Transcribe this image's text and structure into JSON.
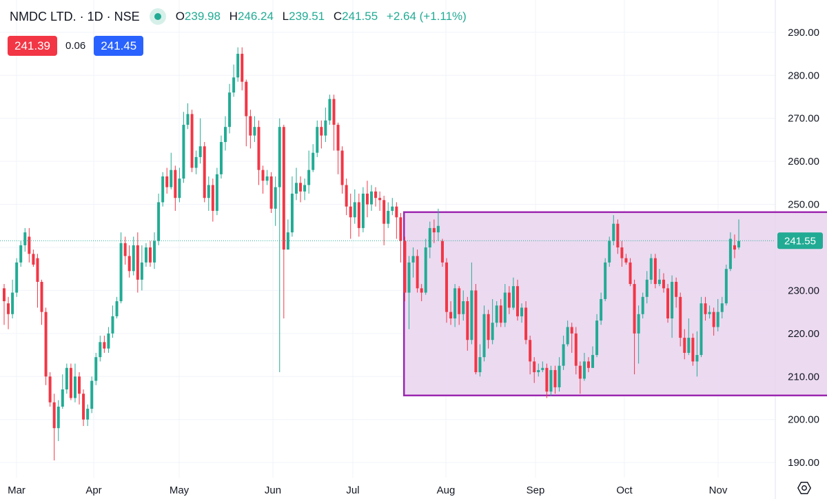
{
  "header": {
    "symbol": "NMDC LTD. · 1D · NSE",
    "open_label": "O",
    "open": "239.98",
    "high_label": "H",
    "high": "246.24",
    "low_label": "L",
    "low": "239.51",
    "close_label": "C",
    "close": "241.55",
    "change": "+2.64 (+1.11%)"
  },
  "quotes": {
    "sell": "241.39",
    "spread": "0.06",
    "buy": "241.45"
  },
  "colors": {
    "up": "#22ab94",
    "down": "#f23645",
    "box_border": "#9c27b0",
    "box_fill": "#e9d4ef",
    "grid": "#f0f3fa"
  },
  "icons": {
    "settings": "settings-icon",
    "live-dot": "live-dot-icon"
  },
  "chart_data": {
    "type": "candlestick",
    "x_tick_labels": [
      "Mar",
      "Apr",
      "May",
      "Jun",
      "Jul",
      "Aug",
      "Sep",
      "Oct",
      "Nov"
    ],
    "y_tick_labels": [
      "290.00",
      "280.00",
      "270.00",
      "260.00",
      "250.00",
      "240.00",
      "230.00",
      "220.00",
      "210.00",
      "200.00",
      "190.00"
    ],
    "y_ticks": [
      290,
      280,
      270,
      260,
      250,
      240,
      230,
      220,
      210,
      200,
      190
    ],
    "y_range": [
      186.5,
      297.5
    ],
    "last_price": 241.55,
    "last_price_label": "241.55",
    "range_box": {
      "start_month_index": 4.55,
      "end_month_index": 9.55,
      "top": 248.2,
      "bottom": 205.6
    },
    "candles": [
      [
        230.5,
        227.5,
        231.5,
        222.0
      ],
      [
        227.0,
        224.5,
        228.5,
        221.0
      ],
      [
        224.5,
        229.5,
        232.5,
        223.5
      ],
      [
        229.5,
        236.5,
        237.5,
        228.5
      ],
      [
        236.5,
        240.5,
        241.5,
        235.5
      ],
      [
        240.5,
        243.5,
        244.5,
        239.0
      ],
      [
        242.5,
        238.5,
        244.5,
        236.5
      ],
      [
        238.5,
        236.0,
        239.5,
        235.5
      ],
      [
        237.5,
        232.0,
        238.5,
        226.0
      ],
      [
        232.0,
        225.0,
        232.5,
        222.0
      ],
      [
        225.0,
        210.0,
        226.0,
        208.0
      ],
      [
        210.0,
        204.0,
        211.0,
        203.0
      ],
      [
        204.0,
        198.0,
        206.0,
        190.5
      ],
      [
        198.0,
        203.0,
        204.5,
        195.0
      ],
      [
        203.0,
        207.0,
        210.5,
        202.5
      ],
      [
        207.0,
        212.0,
        213.0,
        206.0
      ],
      [
        212.0,
        205.0,
        213.0,
        204.5
      ],
      [
        205.0,
        210.0,
        213.0,
        204.0
      ],
      [
        210.0,
        206.0,
        211.0,
        203.5
      ],
      [
        206.0,
        200.0,
        207.0,
        198.5
      ],
      [
        200.0,
        202.5,
        203.5,
        198.5
      ],
      [
        202.5,
        209.0,
        210.0,
        201.5
      ],
      [
        209.0,
        214.5,
        215.5,
        208.0
      ],
      [
        214.5,
        218.0,
        219.5,
        213.5
      ],
      [
        218.0,
        216.5,
        219.5,
        215.5
      ],
      [
        216.5,
        220.0,
        221.5,
        215.5
      ],
      [
        220.0,
        224.0,
        226.5,
        219.0
      ],
      [
        224.0,
        227.5,
        228.5,
        223.5
      ],
      [
        227.5,
        241.0,
        243.5,
        227.0
      ],
      [
        241.0,
        238.0,
        242.5,
        236.0
      ],
      [
        238.0,
        234.5,
        240.5,
        233.0
      ],
      [
        234.5,
        240.5,
        242.5,
        233.5
      ],
      [
        240.5,
        232.5,
        243.5,
        229.5
      ],
      [
        232.5,
        236.5,
        240.5,
        230.0
      ],
      [
        236.5,
        240.0,
        241.0,
        235.5
      ],
      [
        240.0,
        236.5,
        241.5,
        235.5
      ],
      [
        236.5,
        241.5,
        243.5,
        235.0
      ],
      [
        241.5,
        250.5,
        252.5,
        240.5
      ],
      [
        250.5,
        256.5,
        257.5,
        249.5
      ],
      [
        256.5,
        254.0,
        258.5,
        252.5
      ],
      [
        254.0,
        258.0,
        262.0,
        253.5
      ],
      [
        258.0,
        251.5,
        259.0,
        248.5
      ],
      [
        251.5,
        256.0,
        258.5,
        250.5
      ],
      [
        256.0,
        268.5,
        271.5,
        255.0
      ],
      [
        268.5,
        271.0,
        273.5,
        267.5
      ],
      [
        271.0,
        258.5,
        272.0,
        257.5
      ],
      [
        258.5,
        261.0,
        262.5,
        257.0
      ],
      [
        261.0,
        263.5,
        270.0,
        259.5
      ],
      [
        263.5,
        251.5,
        264.5,
        250.5
      ],
      [
        251.5,
        254.5,
        256.5,
        248.5
      ],
      [
        254.5,
        248.5,
        256.0,
        246.0
      ],
      [
        248.5,
        257.0,
        258.5,
        247.5
      ],
      [
        257.0,
        264.5,
        266.0,
        256.0
      ],
      [
        264.5,
        268.0,
        270.5,
        262.5
      ],
      [
        268.0,
        276.0,
        278.0,
        266.5
      ],
      [
        276.0,
        279.5,
        282.5,
        275.0
      ],
      [
        279.5,
        285.0,
        286.5,
        278.5
      ],
      [
        285.0,
        278.5,
        286.5,
        276.5
      ],
      [
        278.5,
        270.5,
        279.0,
        263.5
      ],
      [
        270.5,
        266.0,
        272.0,
        263.0
      ],
      [
        266.0,
        268.0,
        270.5,
        264.5
      ],
      [
        268.0,
        258.0,
        269.5,
        254.5
      ],
      [
        258.0,
        255.5,
        259.0,
        252.5
      ],
      [
        255.5,
        256.5,
        258.0,
        254.5
      ],
      [
        256.5,
        249.0,
        257.5,
        248.0
      ],
      [
        249.0,
        254.0,
        256.5,
        245.0
      ],
      [
        254.0,
        268.0,
        270.0,
        211.0
      ],
      [
        268.0,
        239.5,
        268.5,
        223.5
      ],
      [
        239.5,
        243.5,
        246.5,
        242.5
      ],
      [
        243.5,
        252.5,
        256.5,
        242.5
      ],
      [
        252.5,
        255.0,
        258.5,
        251.0
      ],
      [
        255.0,
        253.0,
        256.5,
        250.5
      ],
      [
        253.0,
        254.5,
        256.0,
        251.0
      ],
      [
        254.5,
        258.0,
        262.5,
        252.5
      ],
      [
        258.0,
        262.0,
        264.0,
        257.5
      ],
      [
        262.0,
        268.0,
        269.5,
        261.0
      ],
      [
        268.0,
        266.0,
        269.5,
        263.0
      ],
      [
        266.0,
        269.5,
        272.5,
        264.5
      ],
      [
        269.5,
        274.5,
        275.5,
        268.5
      ],
      [
        274.5,
        268.5,
        275.5,
        262.5
      ],
      [
        268.5,
        262.5,
        269.0,
        257.0
      ],
      [
        262.5,
        254.5,
        263.5,
        252.5
      ],
      [
        254.5,
        249.5,
        256.0,
        247.5
      ],
      [
        249.5,
        247.0,
        252.5,
        242.0
      ],
      [
        247.0,
        250.5,
        253.5,
        245.5
      ],
      [
        250.5,
        244.5,
        252.5,
        242.5
      ],
      [
        244.5,
        252.5,
        254.0,
        243.5
      ],
      [
        252.5,
        250.0,
        255.5,
        247.0
      ],
      [
        250.0,
        253.0,
        254.5,
        248.5
      ],
      [
        253.0,
        251.5,
        254.0,
        249.5
      ],
      [
        251.5,
        251.0,
        253.0,
        248.5
      ],
      [
        251.0,
        245.5,
        252.0,
        240.5
      ],
      [
        245.5,
        248.5,
        250.5,
        244.5
      ],
      [
        248.5,
        249.5,
        251.5,
        247.5
      ],
      [
        249.5,
        247.0,
        250.5,
        242.0
      ],
      [
        247.0,
        241.5,
        248.0,
        236.5
      ],
      [
        241.5,
        229.5,
        242.5,
        227.5
      ],
      [
        229.5,
        236.5,
        238.0,
        221.0
      ],
      [
        236.5,
        238.0,
        240.0,
        233.0
      ],
      [
        238.0,
        230.5,
        239.5,
        229.5
      ],
      [
        230.5,
        229.5,
        231.5,
        227.5
      ],
      [
        229.5,
        240.0,
        242.0,
        229.0
      ],
      [
        240.0,
        244.5,
        246.0,
        237.5
      ],
      [
        244.5,
        243.5,
        246.5,
        241.0
      ],
      [
        243.5,
        245.0,
        249.0,
        241.5
      ],
      [
        241.5,
        236.5,
        242.0,
        235.5
      ],
      [
        236.5,
        225.0,
        237.5,
        222.5
      ],
      [
        225.0,
        223.5,
        227.5,
        222.0
      ],
      [
        223.5,
        230.5,
        231.5,
        221.5
      ],
      [
        230.5,
        224.5,
        231.0,
        222.0
      ],
      [
        224.5,
        227.5,
        230.0,
        223.0
      ],
      [
        227.5,
        218.5,
        228.5,
        216.0
      ],
      [
        218.5,
        230.0,
        236.5,
        217.5
      ],
      [
        230.0,
        211.0,
        231.5,
        210.5
      ],
      [
        211.0,
        214.5,
        217.5,
        210.0
      ],
      [
        214.5,
        224.5,
        226.5,
        213.5
      ],
      [
        224.5,
        218.5,
        225.5,
        216.5
      ],
      [
        218.5,
        222.5,
        228.0,
        217.5
      ],
      [
        222.5,
        226.5,
        227.5,
        221.5
      ],
      [
        226.5,
        222.5,
        228.0,
        221.5
      ],
      [
        222.5,
        229.5,
        231.5,
        221.5
      ],
      [
        229.5,
        226.0,
        231.0,
        224.5
      ],
      [
        226.0,
        231.0,
        233.0,
        225.5
      ],
      [
        231.0,
        224.0,
        232.5,
        223.0
      ],
      [
        224.0,
        226.0,
        227.0,
        222.5
      ],
      [
        226.0,
        218.5,
        227.5,
        217.5
      ],
      [
        218.5,
        213.5,
        219.5,
        210.5
      ],
      [
        213.5,
        211.0,
        214.5,
        208.5
      ],
      [
        211.0,
        211.5,
        213.0,
        210.0
      ],
      [
        211.5,
        212.0,
        213.5,
        211.0
      ],
      [
        212.0,
        206.5,
        213.0,
        205.0
      ],
      [
        206.5,
        211.5,
        212.5,
        205.5
      ],
      [
        211.5,
        207.5,
        212.5,
        206.0
      ],
      [
        207.5,
        212.5,
        214.5,
        206.5
      ],
      [
        212.5,
        217.5,
        219.5,
        211.5
      ],
      [
        217.5,
        221.5,
        223.0,
        217.0
      ],
      [
        221.5,
        220.0,
        222.5,
        215.5
      ],
      [
        220.0,
        212.5,
        221.5,
        210.5
      ],
      [
        212.5,
        209.5,
        213.5,
        206.0
      ],
      [
        209.5,
        213.5,
        215.5,
        209.0
      ],
      [
        213.5,
        212.0,
        214.5,
        211.0
      ],
      [
        212.0,
        215.0,
        217.0,
        212.0
      ],
      [
        215.0,
        223.0,
        224.5,
        214.5
      ],
      [
        223.0,
        228.0,
        229.5,
        222.0
      ],
      [
        228.0,
        236.5,
        237.5,
        227.5
      ],
      [
        236.5,
        241.5,
        242.5,
        235.5
      ],
      [
        241.5,
        245.5,
        247.5,
        240.5
      ],
      [
        245.5,
        240.0,
        246.5,
        238.5
      ],
      [
        240.0,
        237.5,
        241.5,
        235.5
      ],
      [
        237.5,
        236.5,
        238.5,
        236.0
      ],
      [
        236.5,
        231.5,
        237.5,
        231.0
      ],
      [
        231.5,
        220.0,
        232.5,
        210.5
      ],
      [
        220.0,
        224.5,
        226.5,
        213.0
      ],
      [
        224.5,
        228.5,
        229.5,
        223.5
      ],
      [
        228.5,
        232.5,
        234.5,
        227.0
      ],
      [
        232.5,
        237.5,
        238.5,
        231.5
      ],
      [
        237.5,
        231.5,
        238.5,
        230.5
      ],
      [
        231.5,
        232.5,
        235.0,
        231.0
      ],
      [
        232.5,
        230.5,
        234.0,
        229.5
      ],
      [
        230.5,
        223.5,
        231.5,
        222.5
      ],
      [
        223.5,
        232.0,
        233.5,
        219.0
      ],
      [
        232.0,
        228.5,
        233.0,
        226.0
      ],
      [
        228.5,
        219.0,
        229.5,
        217.0
      ],
      [
        219.0,
        215.5,
        221.0,
        214.0
      ],
      [
        215.5,
        219.0,
        223.5,
        215.0
      ],
      [
        219.0,
        213.5,
        220.0,
        212.5
      ],
      [
        213.5,
        215.0,
        220.5,
        210.0
      ],
      [
        215.0,
        227.0,
        228.5,
        214.5
      ],
      [
        227.0,
        224.5,
        228.5,
        223.0
      ],
      [
        224.5,
        225.0,
        226.5,
        223.5
      ],
      [
        225.0,
        221.5,
        226.0,
        219.5
      ],
      [
        221.5,
        225.0,
        228.0,
        220.5
      ],
      [
        225.0,
        227.0,
        228.5,
        223.5
      ],
      [
        227.0,
        235.0,
        236.0,
        226.5
      ],
      [
        235.0,
        242.0,
        243.5,
        234.5
      ],
      [
        240.5,
        239.5,
        243.0,
        237.5
      ],
      [
        240.0,
        241.5,
        246.5,
        239.5
      ]
    ]
  }
}
